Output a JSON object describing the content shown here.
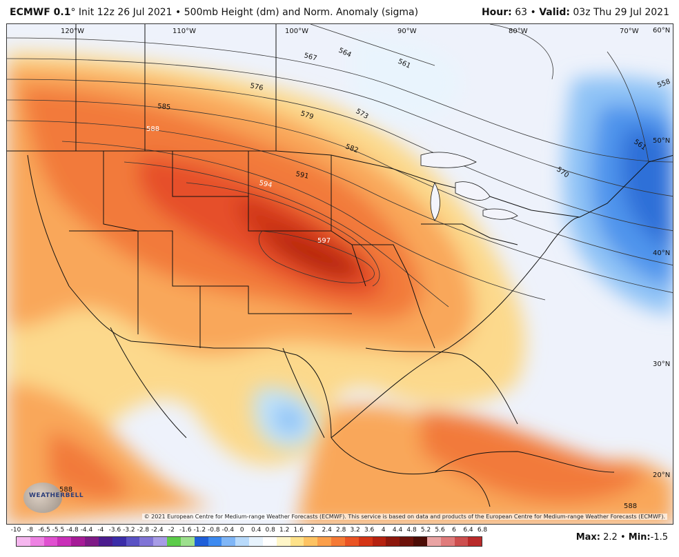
{
  "header": {
    "model": "ECMWF 0.1",
    "deg": "°",
    "init": "Init 12z 26 Jul 2021",
    "sep": "•",
    "product": "500mb Height (dm) and Norm. Anomaly (sigma)",
    "hour_label": "Hour:",
    "hour_value": "63",
    "valid_label": "Valid:",
    "valid_value": "03z Thu 29 Jul 2021"
  },
  "map": {
    "longitude_labels": [
      "120°W",
      "110°W",
      "100°W",
      "90°W",
      "80°W",
      "70°W"
    ],
    "latitude_labels": [
      "60°N",
      "50°N",
      "40°N",
      "30°N",
      "20°N"
    ],
    "contour_labels": [
      "567",
      "564",
      "561",
      "576",
      "573",
      "585",
      "579",
      "588",
      "582",
      "591",
      "594",
      "597",
      "561",
      "570",
      "558",
      "588",
      "588"
    ],
    "copyright": "© 2021 European Centre for Medium-range Weather Forecasts (ECMWF). This service is based on data and products of the European Centre for Medium-range Weather Forecasts (ECMWF).",
    "logo_text": "WEATHERBELL"
  },
  "legend": {
    "ticks": [
      "-10",
      "-8",
      "-6.5",
      "-5.5",
      "-4.8",
      "-4.4",
      "-4",
      "-3.6",
      "-3.2",
      "-2.8",
      "-2.4",
      "-2",
      "-1.6",
      "-1.2",
      "-0.8",
      "-0.4",
      "0",
      "0.4",
      "0.8",
      "1.2",
      "1.6",
      "2",
      "2.4",
      "2.8",
      "3.2",
      "3.6",
      "4",
      "4.4",
      "4.8",
      "5.2",
      "5.6",
      "6",
      "6.4",
      "6.8"
    ],
    "colors": [
      "#f6b7ef",
      "#ee82e3",
      "#e050d0",
      "#c92fb8",
      "#a61b97",
      "#7e1a86",
      "#4b1c8e",
      "#3b2da8",
      "#5a52c4",
      "#8074d6",
      "#a79ce6",
      "#5ccc4a",
      "#9de08e",
      "#1f5fd9",
      "#3d8af0",
      "#7fb6f7",
      "#b8dafb",
      "#e7f3fd",
      "#ffffff",
      "#fff6c8",
      "#fee28a",
      "#fdc362",
      "#fb9f4a",
      "#f57a35",
      "#ea5424",
      "#d43415",
      "#b52210",
      "#8d170c",
      "#6d120a",
      "#4c0c06",
      "#e9a3a3",
      "#e07b7b",
      "#cd4f4f",
      "#b92a2a"
    ]
  },
  "stats": {
    "max_label": "Max:",
    "max_value": "2.2",
    "min_label": "Min:",
    "min_value": "-1.5"
  }
}
